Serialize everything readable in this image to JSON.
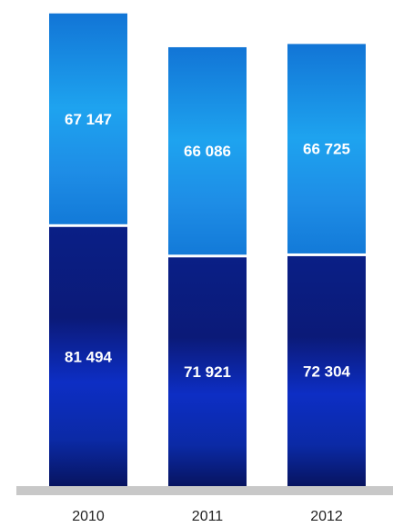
{
  "chart_data": {
    "type": "bar",
    "stacked": true,
    "categories": [
      "2010",
      "2011",
      "2012"
    ],
    "series": [
      {
        "values": [
          81494,
          71921,
          72304
        ],
        "labels": [
          "81 494",
          "71 921",
          "72 304"
        ],
        "color": "#0a22b0"
      },
      {
        "values": [
          67147,
          66086,
          66725
        ],
        "labels": [
          "67 147",
          "66 086",
          "66 725"
        ],
        "color": "#1a8ee8"
      }
    ],
    "title": "",
    "xlabel": "",
    "ylabel": "",
    "ylim": [
      0,
      150000
    ],
    "grid": false,
    "baseline_color": "#c8c8c8"
  }
}
